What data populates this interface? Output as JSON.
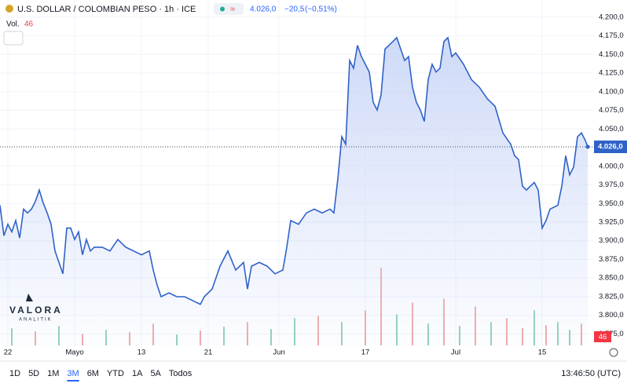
{
  "header": {
    "symbol": "U.S. DOLLAR / COLOMBIAN PESO · 1h · ICE",
    "price": "4.026,0",
    "change": "−20,5",
    "change_pct": "(−0,51%)",
    "vol_label": "Vol.",
    "vol_value": "46"
  },
  "watermark": {
    "brand": "VALORA",
    "sub": "ANALITIK"
  },
  "chart_data": {
    "type": "line",
    "color": "#2f62c8",
    "fill": "#dfe7fb",
    "x": [
      0,
      1,
      2,
      3,
      4,
      5,
      6,
      7,
      8,
      9,
      10,
      11,
      12,
      13,
      14,
      15,
      16,
      17,
      18,
      19,
      20,
      21,
      22,
      23,
      24,
      26,
      28,
      30,
      32,
      34,
      36,
      38,
      39,
      40,
      41,
      43,
      45,
      47,
      49,
      51,
      52,
      54,
      56,
      58,
      60,
      62,
      63,
      64,
      66,
      68,
      70,
      72,
      73,
      74,
      76,
      78,
      80,
      82,
      84,
      85,
      86,
      87,
      88,
      89,
      90,
      91,
      92,
      93,
      94,
      95,
      96,
      97,
      98,
      99,
      100,
      101,
      102,
      103,
      104,
      105,
      106,
      107,
      108,
      109,
      110,
      111,
      112,
      113,
      114,
      115,
      116,
      118,
      120,
      122,
      124,
      126,
      128,
      130,
      131,
      132,
      133,
      134,
      135,
      136,
      137,
      138,
      139,
      140,
      142,
      143,
      144,
      145,
      146,
      147,
      148,
      149,
      149.6
    ],
    "values": [
      3947.6,
      3906.8,
      3922.1,
      3911.9,
      3927.2,
      3903.7,
      3942.5,
      3937.4,
      3942.5,
      3952.7,
      3968.1,
      3950.7,
      3937.4,
      3922.1,
      3886.3,
      3871.0,
      3855.7,
      3917.0,
      3917.0,
      3901.7,
      3911.9,
      3881.2,
      3901.7,
      3886.3,
      3891.4,
      3891.4,
      3886.3,
      3901.7,
      3891.4,
      3886.3,
      3881.2,
      3886.3,
      3860.8,
      3840.4,
      3825.0,
      3830.1,
      3825.0,
      3825.0,
      3819.9,
      3814.8,
      3825.0,
      3835.3,
      3865.9,
      3886.3,
      3860.8,
      3871.0,
      3835.3,
      3865.9,
      3871.0,
      3865.9,
      3855.7,
      3860.8,
      3891.4,
      3927.2,
      3922.1,
      3937.4,
      3942.5,
      3937.4,
      3942.5,
      3937.4,
      3983.4,
      4039.6,
      4029.4,
      4141.8,
      4131.5,
      4162.2,
      4146.9,
      4136.7,
      4126.4,
      4085.6,
      4075.4,
      4095.8,
      4157.1,
      4162.2,
      4167.3,
      4172.4,
      4157.1,
      4141.8,
      4146.9,
      4106.0,
      4085.6,
      4075.4,
      4060.0,
      4116.2,
      4136.7,
      4126.4,
      4131.5,
      4167.3,
      4172.4,
      4146.9,
      4152.0,
      4136.7,
      4116.2,
      4106.0,
      4090.7,
      4080.5,
      4044.7,
      4029.4,
      4014.1,
      4008.9,
      3973.2,
      3968.1,
      3973.2,
      3978.3,
      3968.1,
      3917.0,
      3927.2,
      3942.5,
      3947.6,
      3973.2,
      4014.1,
      3988.5,
      3998.7,
      4039.6,
      4044.7,
      4034.5,
      4026.0
    ],
    "xlim": [
      0,
      151
    ],
    "xticks": [
      {
        "value": 2,
        "label": "22"
      },
      {
        "value": 19,
        "label": "Mayo"
      },
      {
        "value": 36,
        "label": "13"
      },
      {
        "value": 53,
        "label": "21"
      },
      {
        "value": 71,
        "label": "Jun"
      },
      {
        "value": 93,
        "label": "17"
      },
      {
        "value": 116,
        "label": "Jul"
      },
      {
        "value": 138,
        "label": "15"
      }
    ],
    "ylim": [
      3766,
      4204
    ],
    "yticks": [
      {
        "value": 4200,
        "label": "4.200,0"
      },
      {
        "value": 4175,
        "label": "4.175,0"
      },
      {
        "value": 4150,
        "label": "4.150,0"
      },
      {
        "value": 4125,
        "label": "4.125,0"
      },
      {
        "value": 4100,
        "label": "4.100,0"
      },
      {
        "value": 4075,
        "label": "4.075,0"
      },
      {
        "value": 4050,
        "label": "4.050,0"
      },
      {
        "value": 4025,
        "label": "4.025,0"
      },
      {
        "value": 4000,
        "label": "4.000,0"
      },
      {
        "value": 3975,
        "label": "3.975,0"
      },
      {
        "value": 3950,
        "label": "3.950,0"
      },
      {
        "value": 3925,
        "label": "3.925,0"
      },
      {
        "value": 3900,
        "label": "3.900,0"
      },
      {
        "value": 3875,
        "label": "3.875,0"
      },
      {
        "value": 3850,
        "label": "3.850,0"
      },
      {
        "value": 3825,
        "label": "3.825,0"
      },
      {
        "value": 3800,
        "label": "3.800,0"
      },
      {
        "value": 3775,
        "label": "3.775,0"
      }
    ],
    "grid": true,
    "last_price": {
      "value": 4026,
      "label": "4.026,0"
    },
    "volume": {
      "x": [
        3,
        9,
        15,
        21,
        27,
        33,
        39,
        45,
        51,
        57,
        63,
        69,
        75,
        81,
        87,
        93,
        97,
        101,
        105,
        109,
        113,
        117,
        121,
        125,
        129,
        133,
        136,
        139,
        142,
        145,
        148
      ],
      "values": [
        22,
        18,
        25,
        15,
        20,
        17,
        28,
        14,
        19,
        24,
        30,
        21,
        35,
        38,
        30,
        45,
        100,
        40,
        55,
        28,
        60,
        25,
        50,
        30,
        35,
        22,
        45,
        26,
        30,
        20,
        28
      ],
      "up": [
        true,
        false,
        true,
        false,
        true,
        false,
        false,
        true,
        false,
        true,
        false,
        true,
        true,
        false,
        true,
        false,
        false,
        true,
        false,
        true,
        false,
        true,
        false,
        true,
        false,
        false,
        true,
        false,
        true,
        true,
        false
      ],
      "y2lim": [
        0,
        420
      ],
      "up_color": "#8fcfb7",
      "down_color": "#f2a7a7",
      "label": "46",
      "label_color": "#f23645"
    }
  },
  "toolbar": {
    "ranges": [
      "1D",
      "5D",
      "1M",
      "3M",
      "6M",
      "YTD",
      "1A",
      "5A",
      "Todos"
    ],
    "active": 3,
    "time": "13:46:50 (UTC)"
  }
}
